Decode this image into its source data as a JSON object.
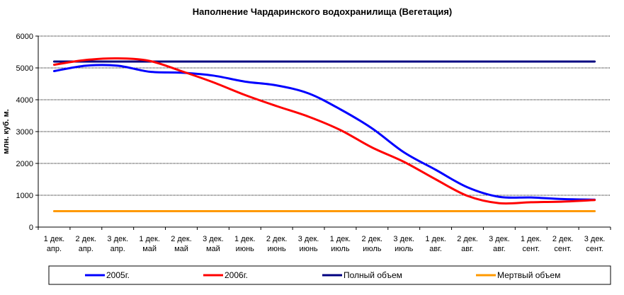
{
  "chart_data": {
    "type": "line",
    "title": "Наполнение Чардаринского водохранилища (Вегетация)",
    "xlabel": "",
    "ylabel": "млн. куб. м.",
    "ylim": [
      0,
      6000
    ],
    "yticks": [
      0,
      1000,
      2000,
      3000,
      4000,
      5000,
      6000
    ],
    "grid": true,
    "legend_position": "bottom",
    "categories": [
      [
        "1 дек.",
        "апр."
      ],
      [
        "2 дек.",
        "апр."
      ],
      [
        "3 дек.",
        "апр."
      ],
      [
        "1 дек.",
        "май"
      ],
      [
        "2 дек.",
        "май"
      ],
      [
        "3 дек.",
        "май"
      ],
      [
        "1 дек.",
        "июнь"
      ],
      [
        "2 дек.",
        "июнь"
      ],
      [
        "3 дек.",
        "июнь"
      ],
      [
        "1 дек.",
        "июль"
      ],
      [
        "2 дек.",
        "июль"
      ],
      [
        "3 дек.",
        "июль"
      ],
      [
        "1 дек.",
        "авг."
      ],
      [
        "2 дек.",
        "авг."
      ],
      [
        "3 дек.",
        "авг."
      ],
      [
        "1 дек.",
        "сент."
      ],
      [
        "2 дек.",
        "сент."
      ],
      [
        "3 дек.",
        "сент."
      ]
    ],
    "series": [
      {
        "name": "2005г.",
        "color": "#0000ff",
        "values": [
          4900,
          5070,
          5070,
          4880,
          4850,
          4760,
          4570,
          4450,
          4200,
          3700,
          3100,
          2350,
          1800,
          1250,
          950,
          930,
          880,
          860
        ]
      },
      {
        "name": "2006г.",
        "color": "#ff0000",
        "values": [
          5100,
          5250,
          5300,
          5220,
          4900,
          4550,
          4150,
          3800,
          3470,
          3050,
          2500,
          2050,
          1500,
          980,
          750,
          780,
          800,
          850
        ]
      },
      {
        "name": "Полный объем",
        "color": "#000080",
        "values": [
          5200,
          5200,
          5200,
          5200,
          5200,
          5200,
          5200,
          5200,
          5200,
          5200,
          5200,
          5200,
          5200,
          5200,
          5200,
          5200,
          5200,
          5200
        ]
      },
      {
        "name": "Мертвый объем",
        "color": "#ff9900",
        "values": [
          500,
          500,
          500,
          500,
          500,
          500,
          500,
          500,
          500,
          500,
          500,
          500,
          500,
          500,
          500,
          500,
          500,
          500
        ]
      }
    ]
  }
}
